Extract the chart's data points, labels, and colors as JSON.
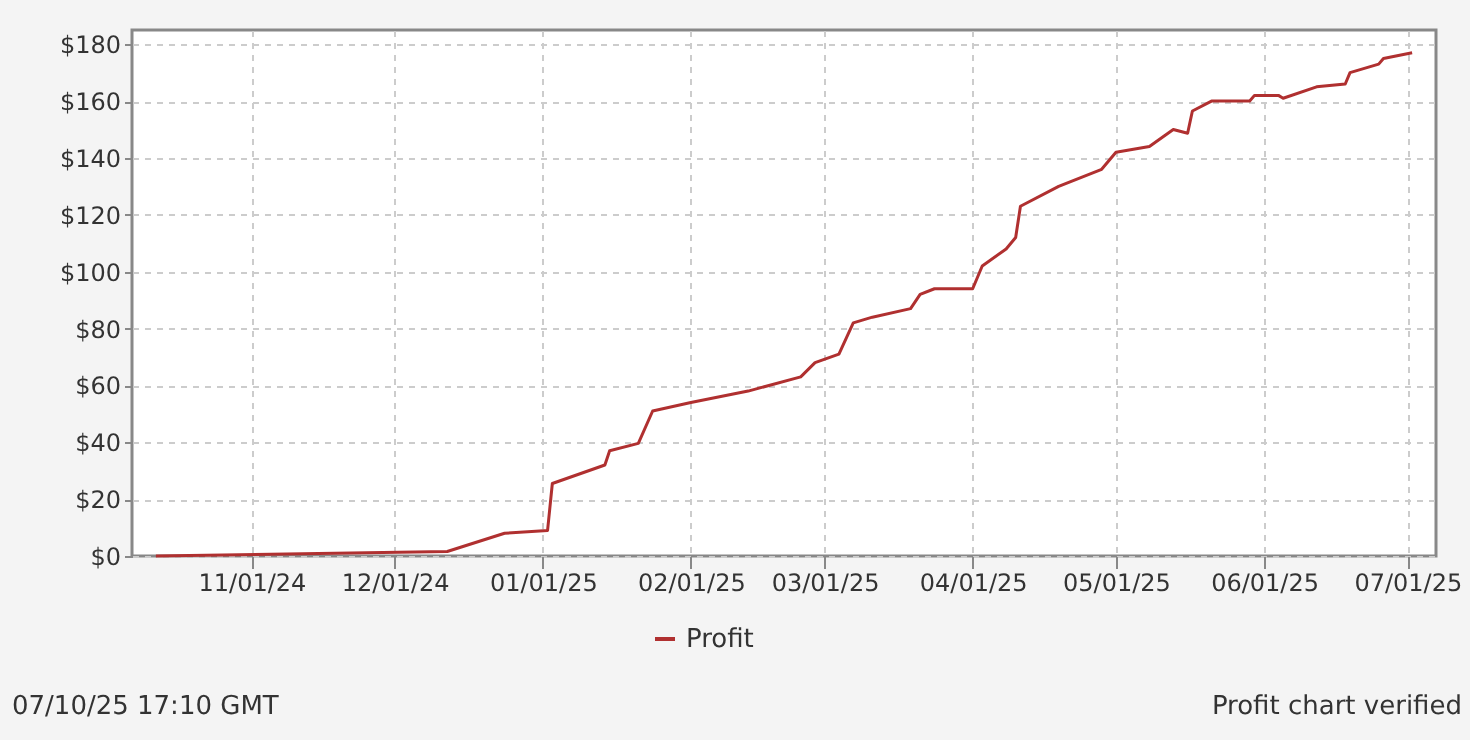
{
  "chart_data": {
    "type": "line",
    "x": [
      "2024-10-12",
      "2024-12-12",
      "2024-12-24",
      "2025-01-02",
      "2025-01-03",
      "2025-01-14",
      "2025-01-15",
      "2025-01-21",
      "2025-01-24",
      "2025-02-01",
      "2025-02-13",
      "2025-02-24",
      "2025-02-27",
      "2025-03-04",
      "2025-03-07",
      "2025-03-11",
      "2025-03-19",
      "2025-03-21",
      "2025-03-24",
      "2025-04-01",
      "2025-04-03",
      "2025-04-08",
      "2025-04-10",
      "2025-04-11",
      "2025-04-19",
      "2025-04-28",
      "2025-05-01",
      "2025-05-08",
      "2025-05-13",
      "2025-05-16",
      "2025-05-17",
      "2025-05-21",
      "2025-05-29",
      "2025-05-30",
      "2025-06-04",
      "2025-06-05",
      "2025-06-12",
      "2025-06-18",
      "2025-06-19",
      "2025-06-25",
      "2025-06-26",
      "2025-07-02"
    ],
    "series": [
      {
        "name": "Profit",
        "color": "#b03030",
        "values": [
          0,
          1.6,
          8,
          9,
          25.5,
          32,
          37,
          39.6,
          51,
          54,
          58,
          63,
          68,
          71,
          82,
          84,
          87,
          92,
          94,
          94,
          102,
          108,
          112,
          123,
          130,
          136,
          142,
          144,
          150,
          148.7,
          156.5,
          160,
          160,
          162,
          162,
          161,
          165,
          166,
          170,
          173,
          175,
          177
        ]
      }
    ],
    "xlim": [
      "2024-10-07",
      "2025-07-07"
    ],
    "xticks": [
      {
        "value": "2024-11-01",
        "label": "11/01/24"
      },
      {
        "value": "2024-12-01",
        "label": "12/01/24"
      },
      {
        "value": "2025-01-01",
        "label": "01/01/25"
      },
      {
        "value": "2025-02-01",
        "label": "02/01/25"
      },
      {
        "value": "2025-03-01",
        "label": "03/01/25"
      },
      {
        "value": "2025-04-01",
        "label": "04/01/25"
      },
      {
        "value": "2025-05-01",
        "label": "05/01/25"
      },
      {
        "value": "2025-06-01",
        "label": "06/01/25"
      },
      {
        "value": "2025-07-01",
        "label": "07/01/25"
      }
    ],
    "ylim": [
      0,
      185
    ],
    "yticks": [
      {
        "value": 0,
        "label": "$0"
      },
      {
        "value": 20,
        "label": "$20"
      },
      {
        "value": 40,
        "label": "$40"
      },
      {
        "value": 60,
        "label": "$60"
      },
      {
        "value": 80,
        "label": "$80"
      },
      {
        "value": 100,
        "label": "$100"
      },
      {
        "value": 120,
        "label": "$120"
      },
      {
        "value": 140,
        "label": "$140"
      },
      {
        "value": 160,
        "label": "$160"
      },
      {
        "value": 180,
        "label": "$180"
      }
    ],
    "grid": true,
    "legend": "bottom",
    "marker": "none",
    "line_style": "solid",
    "annotations": [
      "07/10/25 17:10 GMT",
      "Profit chart verified"
    ]
  }
}
